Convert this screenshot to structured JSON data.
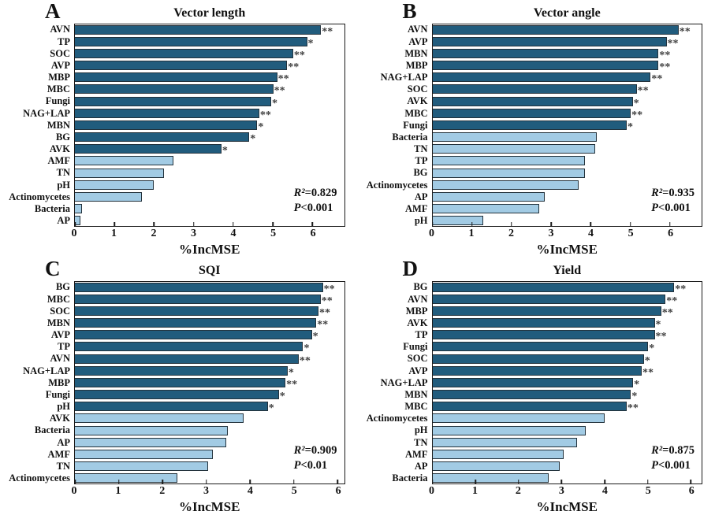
{
  "colors": {
    "significant_bar": "#215c7d",
    "nonsignificant_bar": "#a2cbe4",
    "bar_border": "#23323c",
    "plot_border": "#1a1a1a",
    "stars": "#3f3f3f",
    "text": "#111111"
  },
  "chart_data": [
    {
      "type": "bar",
      "orientation": "horizontal",
      "panel": "A",
      "title": "Vector length",
      "xlabel": "%IncMSE",
      "xlim": [
        0,
        6.8
      ],
      "xticks": [
        0,
        1,
        2,
        3,
        4,
        5,
        6
      ],
      "legend": "dark = significant predictor, light = non-significant",
      "r2_label": "R²",
      "r2_value": "=0.829",
      "p_label": "P",
      "p_value": "<0.001",
      "bars": [
        {
          "label": "AVN",
          "value": 6.2,
          "sig": "**",
          "group": "significant"
        },
        {
          "label": "TP",
          "value": 5.85,
          "sig": "*",
          "group": "significant"
        },
        {
          "label": "SOC",
          "value": 5.5,
          "sig": "**",
          "group": "significant"
        },
        {
          "label": "AVP",
          "value": 5.35,
          "sig": "**",
          "group": "significant"
        },
        {
          "label": "MBP",
          "value": 5.1,
          "sig": "**",
          "group": "significant"
        },
        {
          "label": "MBC",
          "value": 5.0,
          "sig": "**",
          "group": "significant"
        },
        {
          "label": "Fungi",
          "value": 4.95,
          "sig": "*",
          "group": "significant"
        },
        {
          "label": "NAG+LAP",
          "value": 4.65,
          "sig": "**",
          "group": "significant"
        },
        {
          "label": "MBN",
          "value": 4.6,
          "sig": "*",
          "group": "significant"
        },
        {
          "label": "BG",
          "value": 4.4,
          "sig": "*",
          "group": "significant"
        },
        {
          "label": "AVK",
          "value": 3.7,
          "sig": "*",
          "group": "significant"
        },
        {
          "label": "AMF",
          "value": 2.5,
          "sig": "",
          "group": "nonsignificant"
        },
        {
          "label": "TN",
          "value": 2.25,
          "sig": "",
          "group": "nonsignificant"
        },
        {
          "label": "pH",
          "value": 2.0,
          "sig": "",
          "group": "nonsignificant"
        },
        {
          "label": "Actinomycetes",
          "value": 1.7,
          "sig": "",
          "group": "nonsignificant"
        },
        {
          "label": "Bacteria",
          "value": 0.2,
          "sig": "",
          "group": "nonsignificant"
        },
        {
          "label": "AP",
          "value": 0.15,
          "sig": "",
          "group": "nonsignificant"
        }
      ]
    },
    {
      "type": "bar",
      "orientation": "horizontal",
      "panel": "B",
      "title": "Vector angle",
      "xlabel": "%IncMSE",
      "xlim": [
        0,
        6.8
      ],
      "xticks": [
        0,
        1,
        2,
        3,
        4,
        5,
        6
      ],
      "legend": "dark = significant predictor, light = non-significant",
      "r2_label": "R²",
      "r2_value": "=0.935",
      "p_label": "P",
      "p_value": "<0.001",
      "bars": [
        {
          "label": "AVN",
          "value": 6.2,
          "sig": "**",
          "group": "significant"
        },
        {
          "label": "AVP",
          "value": 5.9,
          "sig": "**",
          "group": "significant"
        },
        {
          "label": "MBN",
          "value": 5.7,
          "sig": "**",
          "group": "significant"
        },
        {
          "label": "MBP",
          "value": 5.7,
          "sig": "**",
          "group": "significant"
        },
        {
          "label": "NAG+LAP",
          "value": 5.5,
          "sig": "**",
          "group": "significant"
        },
        {
          "label": "SOC",
          "value": 5.15,
          "sig": "**",
          "group": "significant"
        },
        {
          "label": "AVK",
          "value": 5.05,
          "sig": "*",
          "group": "significant"
        },
        {
          "label": "MBC",
          "value": 5.0,
          "sig": "**",
          "group": "significant"
        },
        {
          "label": "Fungi",
          "value": 4.9,
          "sig": "*",
          "group": "significant"
        },
        {
          "label": "Bacteria",
          "value": 4.15,
          "sig": "",
          "group": "nonsignificant"
        },
        {
          "label": "TN",
          "value": 4.1,
          "sig": "",
          "group": "nonsignificant"
        },
        {
          "label": "TP",
          "value": 3.85,
          "sig": "",
          "group": "nonsignificant"
        },
        {
          "label": "BG",
          "value": 3.85,
          "sig": "",
          "group": "nonsignificant"
        },
        {
          "label": "Actinomycetes",
          "value": 3.7,
          "sig": "",
          "group": "nonsignificant"
        },
        {
          "label": "AP",
          "value": 2.85,
          "sig": "",
          "group": "nonsignificant"
        },
        {
          "label": "AMF",
          "value": 2.7,
          "sig": "",
          "group": "nonsignificant"
        },
        {
          "label": "pH",
          "value": 1.3,
          "sig": "",
          "group": "nonsignificant"
        }
      ]
    },
    {
      "type": "bar",
      "orientation": "horizontal",
      "panel": "C",
      "title": "SQI",
      "xlabel": "%IncMSE",
      "xlim": [
        0,
        6.15
      ],
      "xticks": [
        0,
        1,
        2,
        3,
        4,
        5,
        6
      ],
      "legend": "dark = significant predictor, light = non-significant",
      "r2_label": "R²",
      "r2_value": "=0.909",
      "p_label": "P",
      "p_value": "<0.01",
      "bars": [
        {
          "label": "BG",
          "value": 5.65,
          "sig": "**",
          "group": "significant"
        },
        {
          "label": "MBC",
          "value": 5.6,
          "sig": "**",
          "group": "significant"
        },
        {
          "label": "SOC",
          "value": 5.55,
          "sig": "**",
          "group": "significant"
        },
        {
          "label": "MBN",
          "value": 5.5,
          "sig": "**",
          "group": "significant"
        },
        {
          "label": "AVP",
          "value": 5.4,
          "sig": "*",
          "group": "significant"
        },
        {
          "label": "TP",
          "value": 5.2,
          "sig": "*",
          "group": "significant"
        },
        {
          "label": "AVN",
          "value": 5.1,
          "sig": "**",
          "group": "significant"
        },
        {
          "label": "NAG+LAP",
          "value": 4.85,
          "sig": "*",
          "group": "significant"
        },
        {
          "label": "MBP",
          "value": 4.8,
          "sig": "**",
          "group": "significant"
        },
        {
          "label": "Fungi",
          "value": 4.65,
          "sig": "*",
          "group": "significant"
        },
        {
          "label": "pH",
          "value": 4.4,
          "sig": "*",
          "group": "significant"
        },
        {
          "label": "AVK",
          "value": 3.85,
          "sig": "",
          "group": "nonsignificant"
        },
        {
          "label": "Bacteria",
          "value": 3.5,
          "sig": "",
          "group": "nonsignificant"
        },
        {
          "label": "AP",
          "value": 3.45,
          "sig": "",
          "group": "nonsignificant"
        },
        {
          "label": "AMF",
          "value": 3.15,
          "sig": "",
          "group": "nonsignificant"
        },
        {
          "label": "TN",
          "value": 3.05,
          "sig": "",
          "group": "nonsignificant"
        },
        {
          "label": "Actinomycetes",
          "value": 2.35,
          "sig": "",
          "group": "nonsignificant"
        }
      ]
    },
    {
      "type": "bar",
      "orientation": "horizontal",
      "panel": "D",
      "title": "Yield",
      "xlabel": "%IncMSE",
      "xlim": [
        0,
        6.25
      ],
      "xticks": [
        0,
        1,
        2,
        3,
        4,
        5,
        6
      ],
      "legend": "dark = significant predictor, light = non-significant",
      "r2_label": "R²",
      "r2_value": "=0.875",
      "p_label": "P",
      "p_value": "<0.001",
      "bars": [
        {
          "label": "BG",
          "value": 5.6,
          "sig": "**",
          "group": "significant"
        },
        {
          "label": "AVN",
          "value": 5.4,
          "sig": "**",
          "group": "significant"
        },
        {
          "label": "MBP",
          "value": 5.3,
          "sig": "**",
          "group": "significant"
        },
        {
          "label": "AVK",
          "value": 5.15,
          "sig": "*",
          "group": "significant"
        },
        {
          "label": "TP",
          "value": 5.15,
          "sig": "**",
          "group": "significant"
        },
        {
          "label": "Fungi",
          "value": 5.0,
          "sig": "*",
          "group": "significant"
        },
        {
          "label": "SOC",
          "value": 4.9,
          "sig": "*",
          "group": "significant"
        },
        {
          "label": "AVP",
          "value": 4.85,
          "sig": "**",
          "group": "significant"
        },
        {
          "label": "NAG+LAP",
          "value": 4.65,
          "sig": "*",
          "group": "significant"
        },
        {
          "label": "MBN",
          "value": 4.6,
          "sig": "*",
          "group": "significant"
        },
        {
          "label": "MBC",
          "value": 4.5,
          "sig": "**",
          "group": "significant"
        },
        {
          "label": "Actinomycetes",
          "value": 4.0,
          "sig": "",
          "group": "nonsignificant"
        },
        {
          "label": "pH",
          "value": 3.55,
          "sig": "",
          "group": "nonsignificant"
        },
        {
          "label": "TN",
          "value": 3.35,
          "sig": "",
          "group": "nonsignificant"
        },
        {
          "label": "AMF",
          "value": 3.05,
          "sig": "",
          "group": "nonsignificant"
        },
        {
          "label": "AP",
          "value": 2.95,
          "sig": "",
          "group": "nonsignificant"
        },
        {
          "label": "Bacteria",
          "value": 2.7,
          "sig": "",
          "group": "nonsignificant"
        }
      ]
    }
  ]
}
